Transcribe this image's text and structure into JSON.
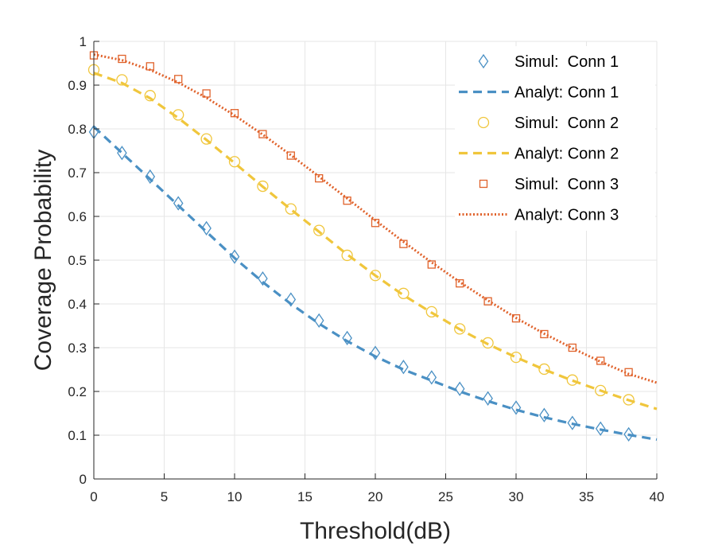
{
  "chart_data": {
    "type": "line",
    "title": "",
    "xlabel": "Threshold(dB)",
    "ylabel": "Coverage Probability",
    "xlim": [
      0,
      40
    ],
    "ylim": [
      0,
      1
    ],
    "grid": true,
    "legend_position": "top-right",
    "x_ticks": [
      0,
      5,
      10,
      15,
      20,
      25,
      30,
      35,
      40
    ],
    "x_tick_labels": [
      "0",
      "5",
      "10",
      "15",
      "20",
      "25",
      "30",
      "35",
      "40"
    ],
    "y_ticks": [
      0,
      0.1,
      0.2,
      0.3,
      0.4,
      0.5,
      0.6,
      0.7,
      0.8,
      0.9,
      1
    ],
    "y_tick_labels": [
      "0",
      "0.1",
      "0.2",
      "0.3",
      "0.4",
      "0.5",
      "0.6",
      "0.7",
      "0.8",
      "0.9",
      "1"
    ],
    "series": [
      {
        "name": "Simul:  Conn 1",
        "kind": "markers",
        "marker": "diamond",
        "color": "#4a90c4",
        "x": [
          0,
          2,
          4,
          6,
          8,
          10,
          12,
          14,
          16,
          18,
          20,
          22,
          24,
          26,
          28,
          30,
          32,
          34,
          36,
          38
        ],
        "values": [
          0.793,
          0.745,
          0.691,
          0.63,
          0.573,
          0.508,
          0.458,
          0.41,
          0.362,
          0.322,
          0.288,
          0.256,
          0.232,
          0.206,
          0.184,
          0.163,
          0.146,
          0.128,
          0.115,
          0.102
        ]
      },
      {
        "name": "Analyt: Conn 1",
        "kind": "line",
        "dash": "dashed",
        "color": "#4a90c4",
        "x": [
          0,
          2,
          4,
          6,
          8,
          10,
          12,
          14,
          16,
          18,
          20,
          22,
          24,
          26,
          28,
          30,
          32,
          34,
          36,
          38,
          40
        ],
        "values": [
          0.805,
          0.745,
          0.685,
          0.625,
          0.565,
          0.505,
          0.45,
          0.4,
          0.355,
          0.315,
          0.28,
          0.25,
          0.225,
          0.2,
          0.178,
          0.158,
          0.141,
          0.126,
          0.113,
          0.101,
          0.09
        ]
      },
      {
        "name": "Simul:  Conn 2",
        "kind": "markers",
        "marker": "circle",
        "color": "#f0c63c",
        "x": [
          0,
          2,
          4,
          6,
          8,
          10,
          12,
          14,
          16,
          18,
          20,
          22,
          24,
          26,
          28,
          30,
          32,
          34,
          36,
          38
        ],
        "values": [
          0.935,
          0.912,
          0.876,
          0.832,
          0.777,
          0.725,
          0.669,
          0.617,
          0.568,
          0.511,
          0.465,
          0.424,
          0.382,
          0.343,
          0.311,
          0.278,
          0.251,
          0.226,
          0.202,
          0.181
        ]
      },
      {
        "name": "Analyt: Conn 2",
        "kind": "line",
        "dash": "dashed",
        "color": "#f0c63c",
        "x": [
          0,
          2,
          4,
          6,
          8,
          10,
          12,
          14,
          16,
          18,
          20,
          22,
          24,
          26,
          28,
          30,
          32,
          34,
          36,
          38,
          40
        ],
        "values": [
          0.928,
          0.905,
          0.87,
          0.825,
          0.775,
          0.722,
          0.668,
          0.616,
          0.565,
          0.513,
          0.465,
          0.42,
          0.38,
          0.342,
          0.308,
          0.278,
          0.25,
          0.225,
          0.202,
          0.18,
          0.16
        ]
      },
      {
        "name": "Simul:  Conn 3",
        "kind": "markers",
        "marker": "square",
        "color": "#e0622b",
        "x": [
          0,
          2,
          4,
          6,
          8,
          10,
          12,
          14,
          16,
          18,
          20,
          22,
          24,
          26,
          28,
          30,
          32,
          34,
          36,
          38
        ],
        "values": [
          0.968,
          0.96,
          0.943,
          0.914,
          0.881,
          0.836,
          0.788,
          0.739,
          0.687,
          0.636,
          0.585,
          0.537,
          0.49,
          0.447,
          0.406,
          0.367,
          0.331,
          0.3,
          0.27,
          0.244
        ]
      },
      {
        "name": "Analyt: Conn 3",
        "kind": "line",
        "dash": "dotted",
        "color": "#e0622b",
        "x": [
          0,
          2,
          4,
          6,
          8,
          10,
          12,
          14,
          16,
          18,
          20,
          22,
          24,
          26,
          28,
          30,
          32,
          34,
          36,
          38,
          40
        ],
        "values": [
          0.97,
          0.957,
          0.935,
          0.906,
          0.871,
          0.831,
          0.787,
          0.74,
          0.691,
          0.641,
          0.591,
          0.542,
          0.495,
          0.45,
          0.408,
          0.368,
          0.332,
          0.299,
          0.268,
          0.24,
          0.22
        ]
      }
    ]
  }
}
